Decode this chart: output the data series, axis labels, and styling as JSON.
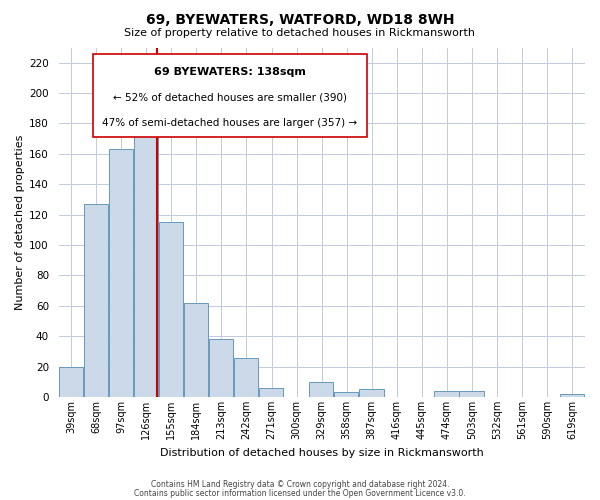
{
  "title": "69, BYEWATERS, WATFORD, WD18 8WH",
  "subtitle": "Size of property relative to detached houses in Rickmansworth",
  "xlabel": "Distribution of detached houses by size in Rickmansworth",
  "ylabel": "Number of detached properties",
  "bar_color": "#ccd9e8",
  "bar_edge_color": "#6699bb",
  "marker_line_color": "#cc0000",
  "marker_value": 138,
  "categories": [
    "39sqm",
    "68sqm",
    "97sqm",
    "126sqm",
    "155sqm",
    "184sqm",
    "213sqm",
    "242sqm",
    "271sqm",
    "300sqm",
    "329sqm",
    "358sqm",
    "387sqm",
    "416sqm",
    "445sqm",
    "474sqm",
    "503sqm",
    "532sqm",
    "561sqm",
    "590sqm",
    "619sqm"
  ],
  "values": [
    20,
    127,
    163,
    172,
    115,
    62,
    38,
    26,
    6,
    0,
    10,
    3,
    5,
    0,
    0,
    4,
    4,
    0,
    0,
    0,
    2
  ],
  "ylim": [
    0,
    230
  ],
  "yticks": [
    0,
    20,
    40,
    60,
    80,
    100,
    120,
    140,
    160,
    180,
    200,
    220
  ],
  "annotation_title": "69 BYEWATERS: 138sqm",
  "annotation_line1": "← 52% of detached houses are smaller (390)",
  "annotation_line2": "47% of semi-detached houses are larger (357) →",
  "footnote1": "Contains HM Land Registry data © Crown copyright and database right 2024.",
  "footnote2": "Contains public sector information licensed under the Open Government Licence v3.0.",
  "bin_width": 29,
  "bin_starts": [
    24.5,
    53.5,
    82.5,
    111.5,
    140.5,
    169.5,
    198.5,
    227.5,
    256.5,
    285.5,
    314.5,
    343.5,
    372.5,
    401.5,
    430.5,
    459.5,
    488.5,
    517.5,
    546.5,
    575.5,
    604.5
  ]
}
